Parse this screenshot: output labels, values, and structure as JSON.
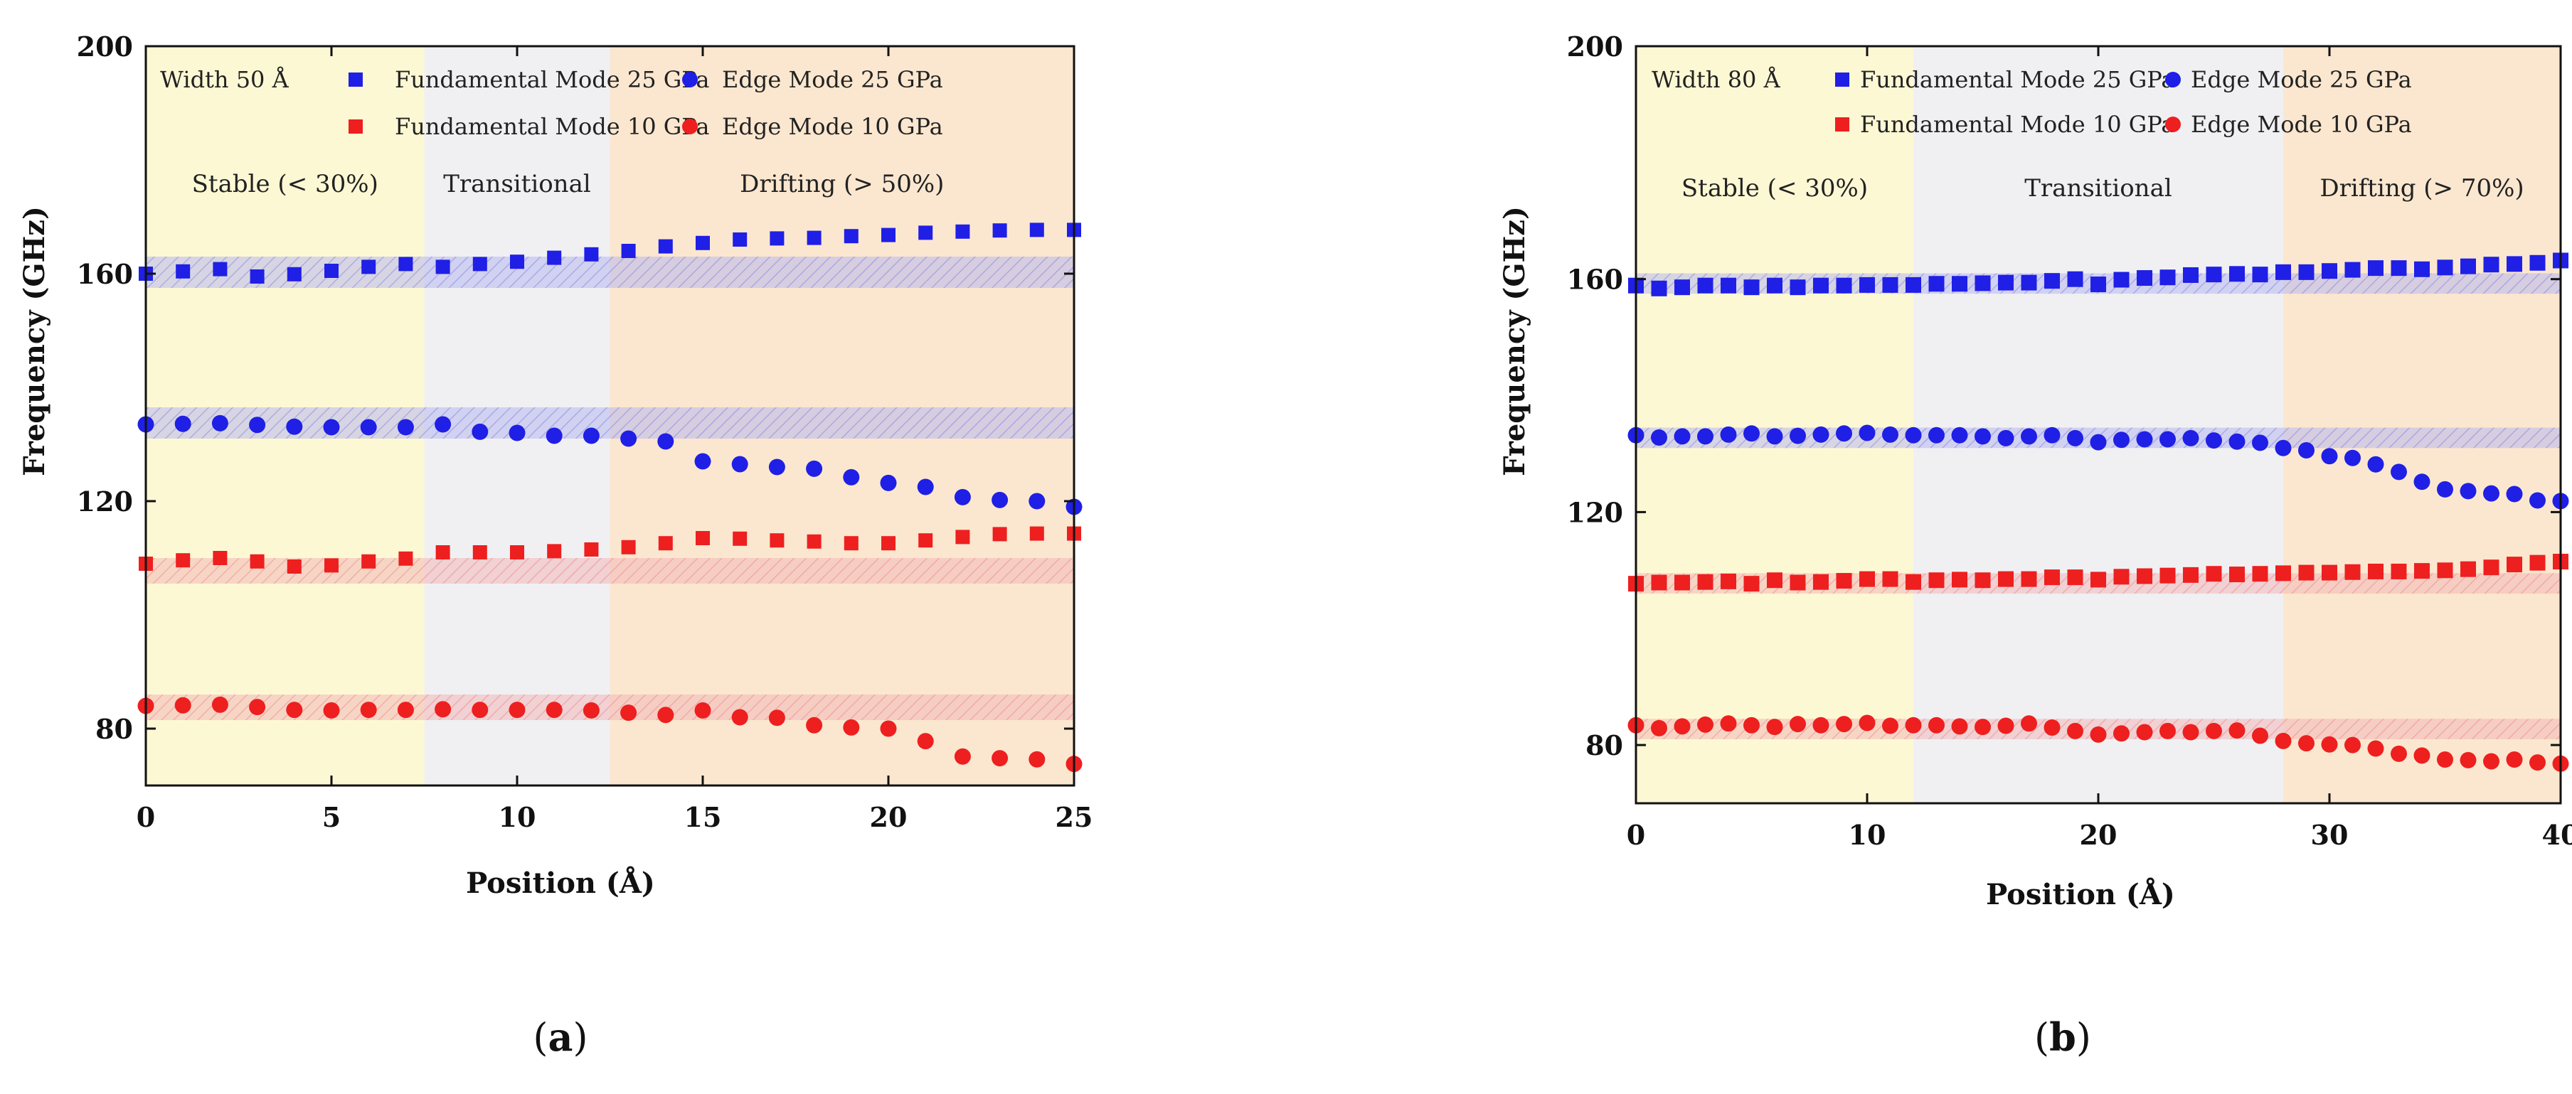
{
  "figure": {
    "panels": [
      "(a)",
      "(b)"
    ],
    "panel_letters": [
      "a",
      "b"
    ],
    "colors": {
      "blue": "#1f1fe6",
      "red": "#ee1f1f",
      "stable_bg": "#fdf8d4",
      "transitional_bg": "#f0f0f3",
      "drifting_bg": "#fbe7cf",
      "blue_band": "#b8b8ee",
      "red_band": "#f3b8b8"
    }
  },
  "chart_data": [
    {
      "type": "scatter",
      "panel_label": "(a)",
      "width_label": "Width 50 Å",
      "xlabel": "Position (Å)",
      "ylabel": "Frequency (GHz)",
      "xlim": [
        0,
        25
      ],
      "ylim": [
        70,
        200
      ],
      "xticks": [
        0,
        5,
        10,
        15,
        20,
        25
      ],
      "yticks": [
        80,
        120,
        160,
        200
      ],
      "regions": [
        {
          "label": "Stable (< 30%)",
          "x0": 0,
          "x1": 7.5,
          "kind": "stable"
        },
        {
          "label": "Transitional",
          "x0": 7.5,
          "x1": 12.5,
          "kind": "transitional"
        },
        {
          "label": "Drifting (> 50%)",
          "x0": 12.5,
          "x1": 25,
          "kind": "drifting"
        }
      ],
      "bands": [
        {
          "y0": 157.5,
          "y1": 163,
          "color": "blue"
        },
        {
          "y0": 131,
          "y1": 136.5,
          "color": "blue"
        },
        {
          "y0": 105.5,
          "y1": 110,
          "color": "red"
        },
        {
          "y0": 81.5,
          "y1": 86,
          "color": "red"
        }
      ],
      "legend": [
        {
          "label": "Fundamental Mode 25 GPa",
          "marker": "square",
          "color": "blue"
        },
        {
          "label": "Edge Mode 25 GPa",
          "marker": "circle",
          "color": "blue"
        },
        {
          "label": "Fundamental Mode 10 GPa",
          "marker": "square",
          "color": "red"
        },
        {
          "label": "Edge Mode 10 GPa",
          "marker": "circle",
          "color": "red"
        }
      ],
      "series": [
        {
          "name": "Fundamental Mode 25 GPa",
          "marker": "square",
          "color": "blue",
          "x": [
            0,
            1,
            2,
            3,
            4,
            5,
            6,
            7,
            8,
            9,
            10,
            11,
            12,
            13,
            14,
            15,
            16,
            17,
            18,
            19,
            20,
            21,
            22,
            23,
            24,
            25
          ],
          "y": [
            160,
            160.4,
            160.8,
            159.5,
            159.9,
            160.5,
            161.2,
            161.7,
            161.2,
            161.7,
            162.1,
            162.8,
            163.4,
            164,
            164.8,
            165.4,
            166,
            166.2,
            166.3,
            166.6,
            166.8,
            167.2,
            167.4,
            167.6,
            167.7,
            167.7
          ]
        },
        {
          "name": "Edge Mode 25 GPa",
          "marker": "circle",
          "color": "blue",
          "x": [
            0,
            1,
            2,
            3,
            4,
            5,
            6,
            7,
            8,
            9,
            10,
            11,
            12,
            13,
            14,
            15,
            16,
            17,
            18,
            19,
            20,
            21,
            22,
            23,
            24,
            25
          ],
          "y": [
            133.5,
            133.6,
            133.7,
            133.4,
            133.1,
            133,
            133,
            133,
            133.5,
            132.2,
            132,
            131.5,
            131.5,
            131,
            130.5,
            127,
            126.5,
            126,
            125.7,
            124.2,
            123.2,
            122.5,
            120.7,
            120.2,
            120,
            119
          ]
        },
        {
          "name": "Fundamental Mode 10 GPa",
          "marker": "square",
          "color": "red",
          "x": [
            0,
            1,
            2,
            3,
            4,
            5,
            6,
            7,
            8,
            9,
            10,
            11,
            12,
            13,
            14,
            15,
            16,
            17,
            18,
            19,
            20,
            21,
            22,
            23,
            24,
            25
          ],
          "y": [
            109,
            109.6,
            110,
            109.4,
            108.5,
            108.7,
            109.4,
            109.9,
            111,
            111,
            111,
            111.2,
            111.5,
            111.9,
            112.6,
            113.5,
            113.4,
            113.1,
            112.9,
            112.6,
            112.6,
            113.1,
            113.7,
            114.2,
            114.3,
            114.3
          ]
        },
        {
          "name": "Edge Mode 10 GPa",
          "marker": "circle",
          "color": "red",
          "x": [
            0,
            1,
            2,
            3,
            4,
            5,
            6,
            7,
            8,
            9,
            10,
            11,
            12,
            13,
            14,
            15,
            16,
            17,
            18,
            19,
            20,
            21,
            22,
            23,
            24,
            25
          ],
          "y": [
            84,
            84.1,
            84.2,
            83.8,
            83.3,
            83.2,
            83.3,
            83.3,
            83.4,
            83.3,
            83.3,
            83.3,
            83.2,
            82.8,
            82.4,
            83.2,
            82,
            81.9,
            80.6,
            80.2,
            80,
            77.8,
            75.1,
            74.8,
            74.6,
            73.8
          ]
        }
      ]
    },
    {
      "type": "scatter",
      "panel_label": "(b)",
      "width_label": "Width 80 Å",
      "xlabel": "Position (Å)",
      "ylabel": "Frequency (GHz)",
      "xlim": [
        0,
        40
      ],
      "ylim": [
        70,
        200
      ],
      "xticks": [
        0,
        10,
        20,
        30,
        40
      ],
      "yticks": [
        80,
        120,
        160,
        200
      ],
      "regions": [
        {
          "label": "Stable (< 30%)",
          "x0": 0,
          "x1": 12,
          "kind": "stable"
        },
        {
          "label": "Transitional",
          "x0": 12,
          "x1": 28,
          "kind": "transitional"
        },
        {
          "label": "Drifting (> 70%)",
          "x0": 28,
          "x1": 40,
          "kind": "drifting"
        }
      ],
      "bands": [
        {
          "y0": 157.5,
          "y1": 161,
          "color": "blue"
        },
        {
          "y0": 131,
          "y1": 134.5,
          "color": "blue"
        },
        {
          "y0": 106,
          "y1": 109.5,
          "color": "red"
        },
        {
          "y0": 81,
          "y1": 84.5,
          "color": "red"
        }
      ],
      "legend": [
        {
          "label": "Fundamental Mode 25 GPa",
          "marker": "square",
          "color": "blue"
        },
        {
          "label": "Edge Mode 25 GPa",
          "marker": "circle",
          "color": "blue"
        },
        {
          "label": "Fundamental Mode 10 GPa",
          "marker": "square",
          "color": "red"
        },
        {
          "label": "Edge Mode 10 GPa",
          "marker": "circle",
          "color": "red"
        }
      ],
      "series": [
        {
          "name": "Fundamental Mode 25 GPa",
          "marker": "square",
          "color": "blue",
          "x": [
            0,
            1,
            2,
            3,
            4,
            5,
            6,
            7,
            8,
            9,
            10,
            11,
            12,
            13,
            14,
            15,
            16,
            17,
            18,
            19,
            20,
            21,
            22,
            23,
            24,
            25,
            26,
            27,
            28,
            29,
            30,
            31,
            32,
            33,
            34,
            35,
            36,
            37,
            38,
            39,
            40
          ],
          "y": [
            158.9,
            158.4,
            158.6,
            158.9,
            158.9,
            158.6,
            158.9,
            158.6,
            158.9,
            158.9,
            159,
            159,
            159,
            159.2,
            159.2,
            159.3,
            159.4,
            159.4,
            159.7,
            160,
            159.1,
            159.9,
            160.2,
            160.3,
            160.7,
            160.8,
            160.9,
            160.8,
            161.2,
            161.2,
            161.4,
            161.6,
            161.9,
            161.9,
            161.7,
            162,
            162.2,
            162.5,
            162.6,
            162.8,
            163.2
          ]
        },
        {
          "name": "Edge Mode 25 GPa",
          "marker": "circle",
          "color": "blue",
          "x": [
            0,
            1,
            2,
            3,
            4,
            5,
            6,
            7,
            8,
            9,
            10,
            11,
            12,
            13,
            14,
            15,
            16,
            17,
            18,
            19,
            20,
            21,
            22,
            23,
            24,
            25,
            26,
            27,
            28,
            29,
            30,
            31,
            32,
            33,
            34,
            35,
            36,
            37,
            38,
            39,
            40
          ],
          "y": [
            133.2,
            132.8,
            133,
            133,
            133.3,
            133.5,
            133,
            133.1,
            133.3,
            133.5,
            133.6,
            133.3,
            133.2,
            133.2,
            133.2,
            133,
            132.7,
            133,
            133.2,
            132.7,
            132,
            132.4,
            132.5,
            132.5,
            132.7,
            132.3,
            132.1,
            131.9,
            131,
            130.6,
            129.6,
            129.3,
            128.2,
            126.9,
            125.2,
            123.9,
            123.6,
            123.2,
            123.1,
            122,
            121.9
          ]
        },
        {
          "name": "Fundamental Mode 10 GPa",
          "marker": "square",
          "color": "red",
          "x": [
            0,
            1,
            2,
            3,
            4,
            5,
            6,
            7,
            8,
            9,
            10,
            11,
            12,
            13,
            14,
            15,
            16,
            17,
            18,
            19,
            20,
            21,
            22,
            23,
            24,
            25,
            26,
            27,
            28,
            29,
            30,
            31,
            32,
            33,
            34,
            35,
            36,
            37,
            38,
            39,
            40
          ],
          "y": [
            107.7,
            107.9,
            107.9,
            108,
            108.1,
            107.7,
            108.3,
            107.9,
            108,
            108.2,
            108.5,
            108.5,
            108,
            108.3,
            108.4,
            108.3,
            108.5,
            108.5,
            108.8,
            108.8,
            108.4,
            108.9,
            109,
            109.1,
            109.2,
            109.4,
            109.3,
            109.4,
            109.5,
            109.6,
            109.6,
            109.7,
            109.8,
            109.8,
            109.9,
            110,
            110.2,
            110.5,
            111,
            111.3,
            111.5
          ]
        },
        {
          "name": "Edge Mode 10 GPa",
          "marker": "circle",
          "color": "red",
          "x": [
            0,
            1,
            2,
            3,
            4,
            5,
            6,
            7,
            8,
            9,
            10,
            11,
            12,
            13,
            14,
            15,
            16,
            17,
            18,
            19,
            20,
            21,
            22,
            23,
            24,
            25,
            26,
            27,
            28,
            29,
            30,
            31,
            32,
            33,
            34,
            35,
            36,
            37,
            38,
            39,
            40
          ],
          "y": [
            83.4,
            82.9,
            83.2,
            83.5,
            83.7,
            83.4,
            83.1,
            83.6,
            83.4,
            83.6,
            83.8,
            83.3,
            83.4,
            83.4,
            83.2,
            83.1,
            83.3,
            83.7,
            83,
            82.4,
            81.8,
            82,
            82.2,
            82.4,
            82.2,
            82.4,
            82.5,
            81.6,
            80.7,
            80.3,
            80.1,
            80,
            79.4,
            78.5,
            78.2,
            77.5,
            77.4,
            77.2,
            77.5,
            77,
            76.8
          ]
        }
      ]
    }
  ]
}
